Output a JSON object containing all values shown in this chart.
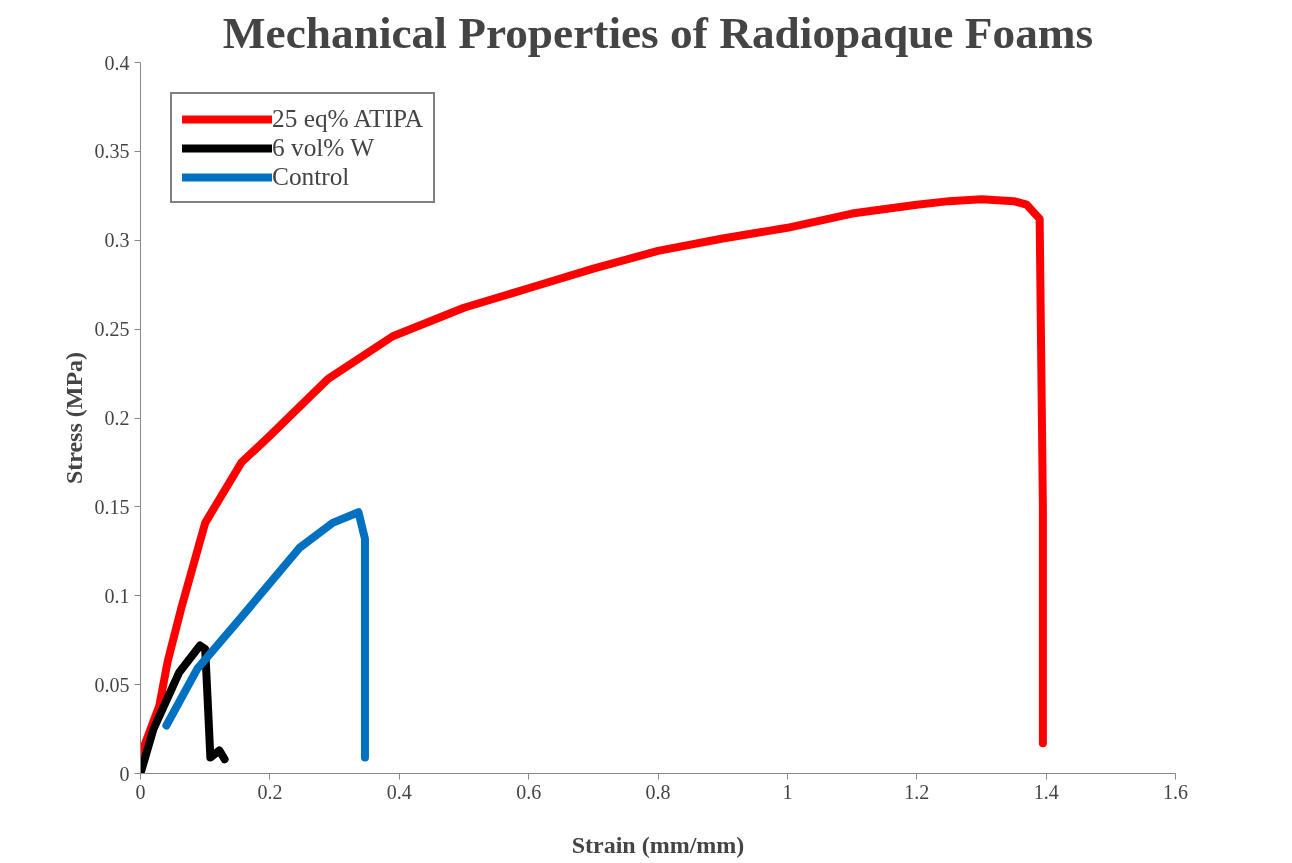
{
  "chart_data": {
    "type": "line",
    "title": "Mechanical Properties of Radiopaque Foams",
    "xlabel": "Strain (mm/mm)",
    "ylabel": "Stress (MPa)",
    "xlim": [
      0,
      1.6
    ],
    "xticks": [
      0,
      0.2,
      0.4,
      0.6,
      0.8,
      1,
      1.2,
      1.4,
      1.6
    ],
    "ylim": [
      0,
      0.4
    ],
    "yticks": [
      0,
      0.05,
      0.1,
      0.15,
      0.2,
      0.25,
      0.3,
      0.35,
      0.4
    ],
    "grid": false,
    "legend": "top left",
    "marker": "none",
    "line_style": "solid",
    "series": [
      {
        "name": "25 eq% ATIPA",
        "color": "#ff0000",
        "x": [
          0,
          0.029,
          0.042,
          0.063,
          0.1,
          0.156,
          0.2,
          0.29,
          0.39,
          0.5,
          0.6,
          0.7,
          0.8,
          0.9,
          1.0,
          1.1,
          1.2,
          1.25,
          1.3,
          1.35,
          1.37,
          1.39,
          1.395,
          1.395
        ],
        "values": [
          0.01,
          0.038,
          0.063,
          0.093,
          0.141,
          0.175,
          0.19,
          0.222,
          0.246,
          0.262,
          0.273,
          0.284,
          0.294,
          0.301,
          0.307,
          0.315,
          0.32,
          0.322,
          0.323,
          0.322,
          0.32,
          0.312,
          0.15,
          0.017
        ]
      },
      {
        "name": "6 vol% W",
        "color": "#000000",
        "x": [
          0,
          0.02,
          0.06,
          0.092,
          0.1,
          0.104,
          0.108,
          0.122,
          0.13
        ],
        "values": [
          0,
          0.025,
          0.057,
          0.072,
          0.07,
          0.04,
          0.009,
          0.013,
          0.008
        ]
      },
      {
        "name": "Control",
        "color": "#0070c0",
        "x": [
          0.04,
          0.088,
          0.156,
          0.246,
          0.297,
          0.337,
          0.347,
          0.347
        ],
        "values": [
          0.027,
          0.059,
          0.088,
          0.127,
          0.141,
          0.147,
          0.132,
          0.009
        ]
      }
    ]
  }
}
